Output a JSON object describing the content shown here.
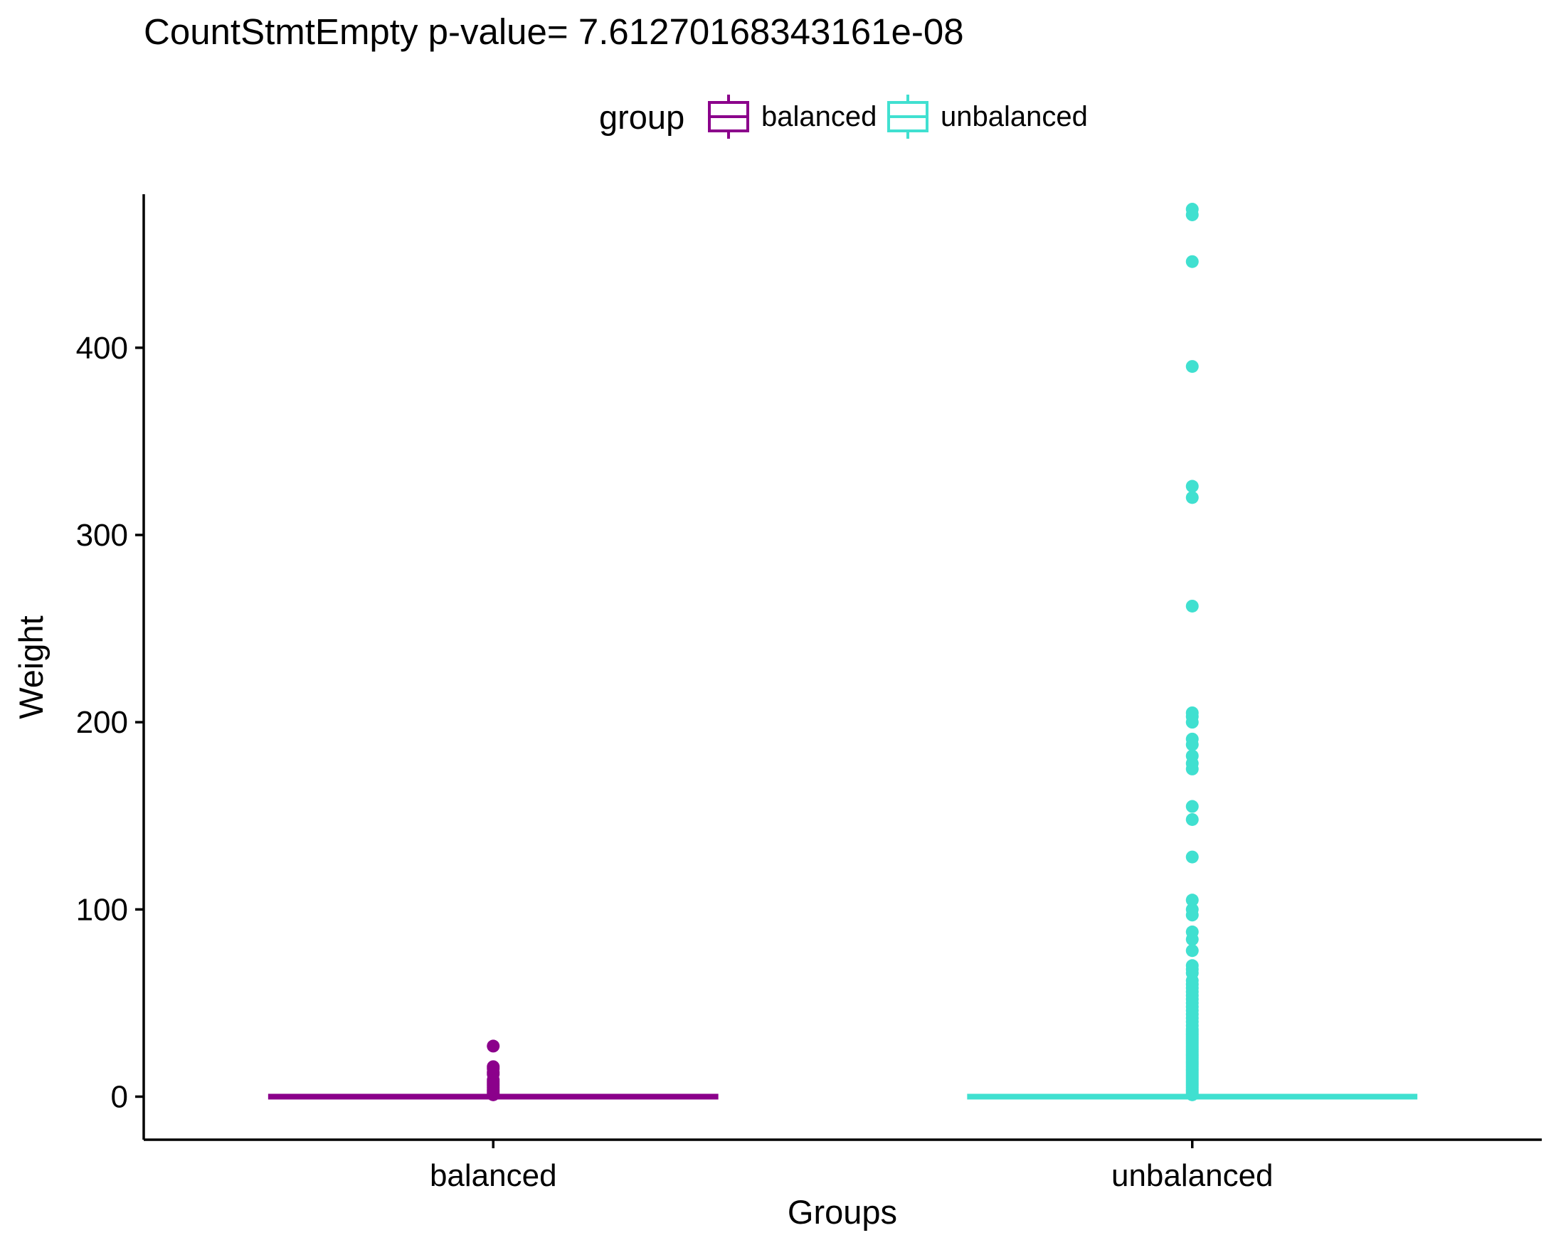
{
  "chart_data": {
    "type": "box",
    "title": "CountStmtEmpty  p-value= 7.61270168343161e-08",
    "xlabel": "Groups",
    "ylabel": "Weight",
    "ylim": [
      -23,
      482
    ],
    "y_ticks": [
      0,
      100,
      200,
      300,
      400
    ],
    "categories": [
      "balanced",
      "unbalanced"
    ],
    "legend": {
      "title": "group",
      "position": "top",
      "entries": [
        "balanced",
        "unbalanced"
      ]
    },
    "grid": false,
    "series": [
      {
        "name": "balanced",
        "color": "#8B008B",
        "box": {
          "min": 0,
          "q1": 0,
          "median": 0,
          "q3": 0,
          "max": 0
        },
        "outliers": [
          1,
          2,
          3,
          4,
          5,
          6,
          7,
          8,
          9,
          12,
          13,
          15,
          16,
          27
        ]
      },
      {
        "name": "unbalanced",
        "color": "#40E0D0",
        "box": {
          "min": 0,
          "q1": 0,
          "median": 0,
          "q3": 0,
          "max": 0
        },
        "outliers": [
          1,
          2,
          3,
          4,
          5,
          6,
          7,
          8,
          9,
          10,
          11,
          12,
          13,
          14,
          15,
          16,
          17,
          18,
          19,
          20,
          21,
          22,
          23,
          24,
          25,
          26,
          27,
          28,
          29,
          30,
          31,
          32,
          33,
          34,
          35,
          36,
          38,
          40,
          42,
          44,
          46,
          48,
          50,
          52,
          54,
          56,
          58,
          60,
          62,
          66,
          68,
          70,
          78,
          84,
          88,
          97,
          100,
          105,
          128,
          148,
          155,
          175,
          178,
          182,
          188,
          191,
          200,
          203,
          205,
          262,
          320,
          326,
          390,
          446,
          471,
          474
        ]
      }
    ]
  }
}
